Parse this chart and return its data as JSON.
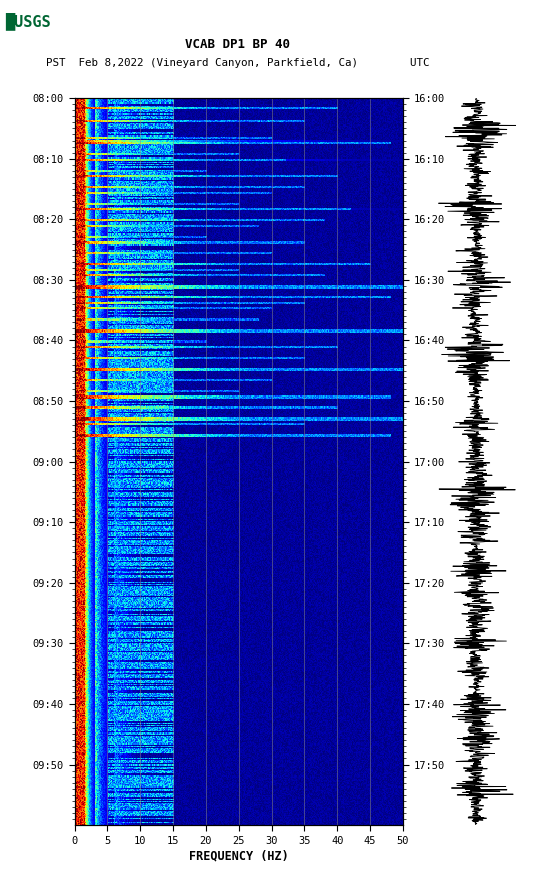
{
  "title_line1": "VCAB DP1 BP 40",
  "title_line2": "PST  Feb 8,2022 (Vineyard Canyon, Parkfield, Ca)        UTC",
  "xlabel": "FREQUENCY (HZ)",
  "freq_min": 0,
  "freq_max": 50,
  "pst_ticks": [
    "08:00",
    "08:10",
    "08:20",
    "08:30",
    "08:40",
    "08:50",
    "09:00",
    "09:10",
    "09:20",
    "09:30",
    "09:40",
    "09:50"
  ],
  "utc_ticks": [
    "16:00",
    "16:10",
    "16:20",
    "16:30",
    "16:40",
    "16:50",
    "17:00",
    "17:10",
    "17:20",
    "17:30",
    "17:40",
    "17:50"
  ],
  "freq_ticks": [
    0,
    5,
    10,
    15,
    20,
    25,
    30,
    35,
    40,
    45,
    50
  ],
  "background_color": "#ffffff",
  "spectrogram_cmap": "jet",
  "vertical_line_color": "#888888",
  "vertical_line_positions": [
    5,
    10,
    15,
    20,
    25,
    30,
    35,
    40,
    45
  ],
  "fig_width": 5.52,
  "fig_height": 8.92,
  "dpi": 100
}
